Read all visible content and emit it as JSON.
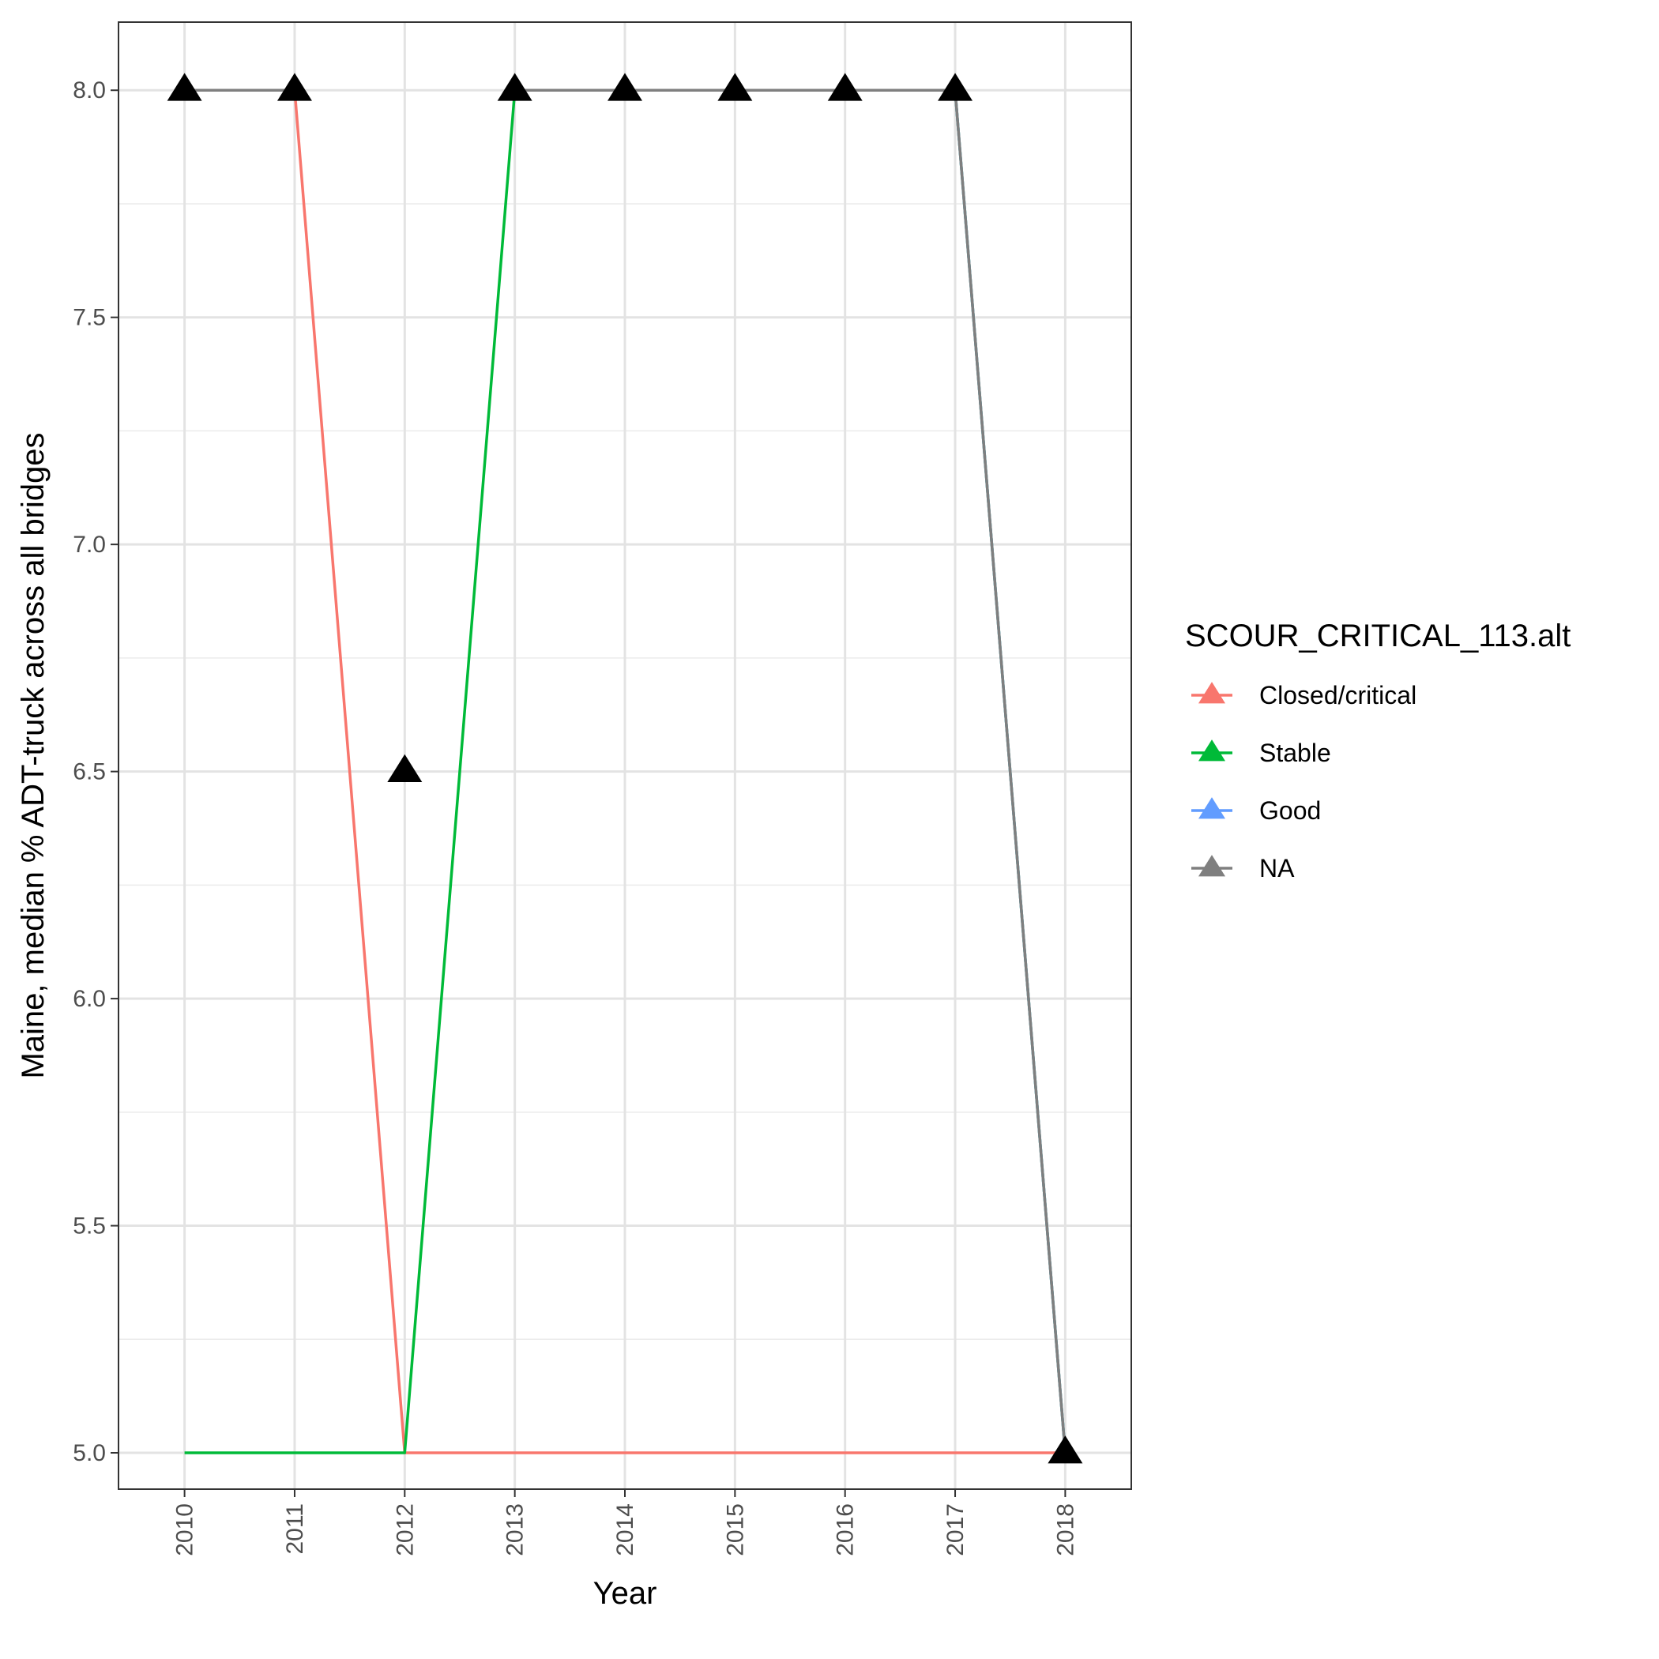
{
  "chart_data": {
    "type": "line",
    "xlabel": "Year",
    "ylabel": "Maine, median % ADT-truck across all bridges",
    "x": [
      2010,
      2011,
      2012,
      2013,
      2014,
      2015,
      2016,
      2017,
      2018
    ],
    "xlim": [
      2009.4,
      2018.6
    ],
    "ylim": [
      4.92,
      8.15
    ],
    "y_ticks": [
      5.0,
      5.5,
      6.0,
      6.5,
      7.0,
      7.5,
      8.0
    ],
    "y_tick_labels": [
      "5.0",
      "5.5",
      "6.0",
      "6.5",
      "7.0",
      "7.5",
      "8.0"
    ],
    "x_tick_labels": [
      "2010",
      "2011",
      "2012",
      "2013",
      "2014",
      "2015",
      "2016",
      "2017",
      "2018"
    ],
    "grid": true,
    "legend": {
      "title": "SCOUR_CRITICAL_113.alt",
      "position": "right",
      "entries": [
        {
          "name": "Closed/critical",
          "color": "#F8766D"
        },
        {
          "name": "Stable",
          "color": "#00BA38"
        },
        {
          "name": "Good",
          "color": "#619CFF"
        },
        {
          "name": "NA",
          "color": "#7F7F7F"
        }
      ]
    },
    "series": [
      {
        "name": "Closed/critical",
        "color": "#F8766D",
        "values": [
          8.0,
          8.0,
          5.0,
          5.0,
          5.0,
          5.0,
          5.0,
          5.0,
          5.0
        ]
      },
      {
        "name": "Stable",
        "color": "#00BA38",
        "values": [
          5.0,
          5.0,
          5.0,
          8.0,
          8.0,
          8.0,
          8.0,
          8.0,
          5.0
        ]
      },
      {
        "name": "Good",
        "color": "#619CFF",
        "values": [
          8.0,
          8.0,
          null,
          8.0,
          8.0,
          8.0,
          8.0,
          8.0,
          5.0
        ]
      },
      {
        "name": "NA",
        "color": "#7F7F7F",
        "values": [
          8.0,
          8.0,
          null,
          8.0,
          8.0,
          8.0,
          8.0,
          8.0,
          5.0
        ]
      }
    ],
    "points": [
      {
        "x": 2010,
        "y": 8.0
      },
      {
        "x": 2011,
        "y": 8.0
      },
      {
        "x": 2012,
        "y": 6.5
      },
      {
        "x": 2013,
        "y": 8.0
      },
      {
        "x": 2014,
        "y": 8.0
      },
      {
        "x": 2015,
        "y": 8.0
      },
      {
        "x": 2016,
        "y": 8.0
      },
      {
        "x": 2017,
        "y": 8.0
      },
      {
        "x": 2018,
        "y": 5.0
      }
    ],
    "point_color": "#000000"
  }
}
